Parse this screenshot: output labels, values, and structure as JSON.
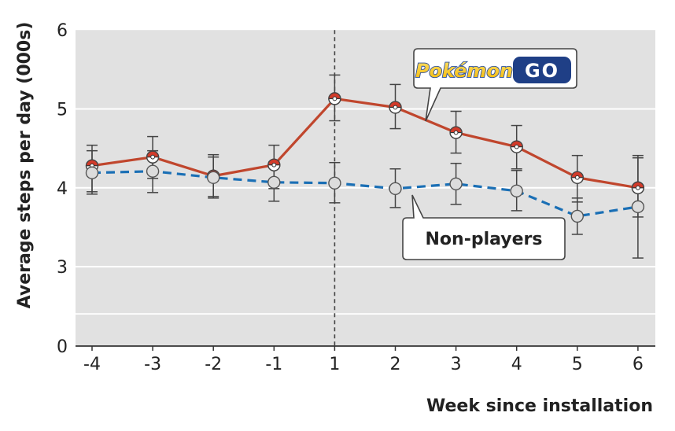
{
  "chart_data": {
    "type": "line",
    "xlabel": "Week since installation",
    "ylabel": "Average steps per day (000s)",
    "categories": [
      "-4",
      "-3",
      "-2",
      "-1",
      "1",
      "2",
      "3",
      "4",
      "5",
      "6"
    ],
    "y_ticks": [
      "0",
      "3",
      "4",
      "5",
      "6"
    ],
    "ylim": [
      0,
      6
    ],
    "axis_break": [
      0,
      2.6
    ],
    "reference_line": {
      "x": "1",
      "style": "dashed"
    },
    "series": [
      {
        "name": "Pokémon GO players",
        "color": "#c0462d",
        "line_style": "solid",
        "values": [
          4.28,
          4.39,
          4.15,
          4.29,
          5.13,
          5.02,
          4.7,
          4.52,
          4.13,
          4.0
        ],
        "error_low": [
          3.95,
          4.12,
          3.89,
          3.99,
          4.85,
          4.75,
          4.44,
          4.24,
          3.82,
          3.63
        ],
        "error_high": [
          4.54,
          4.65,
          4.42,
          4.54,
          5.43,
          5.31,
          4.97,
          4.79,
          4.41,
          4.38
        ]
      },
      {
        "name": "Non-players",
        "color": "#1a6fb5",
        "line_style": "dashed",
        "values": [
          4.19,
          4.21,
          4.13,
          4.07,
          4.06,
          3.99,
          4.05,
          3.96,
          3.64,
          3.76
        ],
        "error_low": [
          3.92,
          3.94,
          3.87,
          3.83,
          3.81,
          3.75,
          3.79,
          3.71,
          3.41,
          3.11
        ],
        "error_high": [
          4.47,
          4.47,
          4.39,
          4.33,
          4.32,
          4.24,
          4.31,
          4.22,
          3.87,
          4.41
        ]
      }
    ],
    "annotations": {
      "logo": {
        "word1": "Pokémon",
        "word2": "GO",
        "points_to": "Pokémon GO players"
      },
      "label": {
        "text": "Non-players",
        "points_to": "Non-players"
      }
    }
  }
}
